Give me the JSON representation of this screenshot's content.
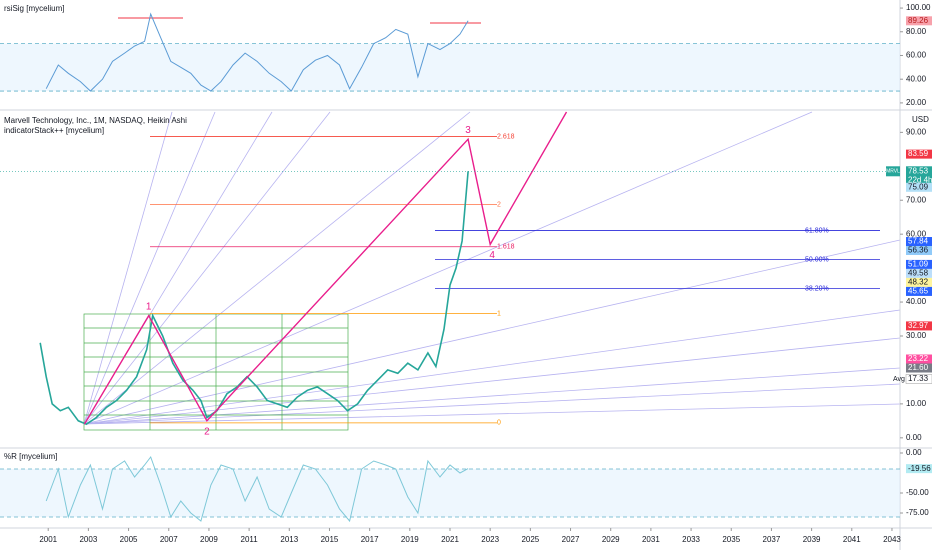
{
  "chart_data": [
    {
      "type": "line",
      "title": "rsiSig [mycelium]",
      "color": "#5b9bd5",
      "x": [
        2000.9,
        2001.5,
        2002.0,
        2002.6,
        2003.1,
        2003.7,
        2004.2,
        2004.8,
        2005.3,
        2005.8,
        2006.1,
        2006.6,
        2007.1,
        2007.6,
        2008.1,
        2008.6,
        2009.1,
        2009.6,
        2010.2,
        2010.8,
        2011.4,
        2012.0,
        2012.6,
        2013.1,
        2013.7,
        2014.3,
        2014.9,
        2015.5,
        2016.0,
        2016.6,
        2017.2,
        2017.8,
        2018.3,
        2018.9,
        2019.4,
        2019.9,
        2020.5,
        2021.0,
        2021.5,
        2021.9
      ],
      "values": [
        32,
        52,
        45,
        38,
        30,
        40,
        55,
        62,
        68,
        72,
        95,
        75,
        55,
        50,
        45,
        35,
        30,
        38,
        52,
        62,
        55,
        45,
        38,
        30,
        48,
        56,
        60,
        52,
        32,
        50,
        70,
        75,
        82,
        78,
        42,
        70,
        65,
        70,
        78,
        89.26
      ],
      "xlim": [
        1998.6,
        2043.4
      ],
      "ylim": [
        15.7,
        106.8
      ],
      "yticks": [
        {
          "value": 20,
          "label": "20.00"
        },
        {
          "value": 40,
          "label": "40.00"
        },
        {
          "value": 60,
          "label": "60.00"
        },
        {
          "value": 80,
          "label": "80.00"
        },
        {
          "value": 100,
          "label": "100.00"
        }
      ],
      "bands": [
        70,
        30
      ]
    },
    {
      "type": "line",
      "title": "Marvell Technology, Inc., 1M, NASDAQ, Heikin Ashi",
      "subtitle": "indicatorStack++ [mycelium]",
      "symbol": "MRVL",
      "countdown": "22d 4h",
      "currency": "USD",
      "avg_label": "Avg",
      "color": "#26a69a",
      "x": [
        2000.6,
        2000.9,
        2001.2,
        2001.6,
        2002.0,
        2002.5,
        2002.9,
        2003.4,
        2003.9,
        2004.4,
        2004.9,
        2005.4,
        2005.9,
        2006.2,
        2006.7,
        2007.2,
        2007.7,
        2008.2,
        2008.6,
        2008.9,
        2009.4,
        2009.9,
        2010.4,
        2010.9,
        2011.4,
        2011.9,
        2012.4,
        2012.9,
        2013.4,
        2013.9,
        2014.4,
        2014.9,
        2015.4,
        2015.9,
        2016.4,
        2016.9,
        2017.4,
        2017.9,
        2018.4,
        2018.9,
        2019.4,
        2019.9,
        2020.3,
        2020.7,
        2021.0,
        2021.3,
        2021.6,
        2021.9
      ],
      "values": [
        28,
        18,
        10,
        8,
        9,
        5,
        4,
        6,
        9,
        11,
        14,
        18,
        26,
        36,
        30,
        22,
        17,
        14,
        11,
        6,
        8,
        13,
        15,
        18,
        15,
        11,
        10,
        9,
        12,
        14,
        15,
        13,
        11,
        8,
        10,
        14,
        17,
        20,
        19,
        22,
        20,
        25,
        21,
        32,
        45,
        50,
        58,
        78.53
      ],
      "xlim": [
        1998.6,
        2043.4
      ],
      "ylim": [
        -3,
        96
      ],
      "yticks": [
        {
          "value": 0,
          "label": "0.00"
        },
        {
          "value": 10,
          "label": "10.00"
        },
        {
          "value": 30,
          "label": "30.00"
        },
        {
          "value": 40,
          "label": "40.00"
        },
        {
          "value": 60,
          "label": "60.00"
        },
        {
          "value": 70,
          "label": "70.00"
        },
        {
          "value": 90,
          "label": "90.00"
        }
      ],
      "price_labels": [
        83.59,
        75.09,
        57.84,
        56.36,
        51.09,
        49.58,
        48.32,
        45.65,
        32.97,
        23.22,
        {
          "value": 21.6,
          "label": "21.60"
        },
        17.33
      ],
      "price_label_colors": [
        "#f23645",
        "#b3e0f7",
        "#2962ff",
        "#90caf9",
        "#2962ff",
        "#bbdefb",
        "#fff59d",
        "#2962ff",
        "#f23645",
        "#ff4fa0",
        "#787b86",
        "#ffffff"
      ],
      "fib_ratios": [
        2.618,
        2,
        1.618,
        1,
        0
      ],
      "fib_levels": [
        88.8,
        68.7,
        56.3,
        36.6,
        4.4
      ],
      "fib_colors": [
        "#f44336",
        "#ff7043",
        "#e91e63",
        "#ff9800",
        "#ff9800"
      ],
      "retracement_labels": [
        "61.80%",
        "50.00%",
        "38.20%"
      ],
      "retracement_levels": [
        61.1,
        52.5,
        44.0
      ],
      "retracement_color": "#2a2ad9",
      "wave_x": [
        2002.8,
        2006.0,
        2008.9,
        2021.9,
        2023.0,
        2026.8
      ],
      "wave_values": [
        4,
        36,
        5,
        88,
        57,
        96
      ],
      "wave_labels": [
        "1",
        "2",
        "3",
        "4"
      ],
      "wave_color": "#e91e8c"
    },
    {
      "type": "line",
      "title": "%R [mycelium]",
      "color": "#7ec8d8",
      "x": [
        2000.9,
        2001.5,
        2002.0,
        2002.6,
        2003.1,
        2003.7,
        2004.2,
        2004.8,
        2005.3,
        2005.8,
        2006.1,
        2006.6,
        2007.1,
        2007.6,
        2008.1,
        2008.6,
        2009.1,
        2009.6,
        2010.2,
        2010.8,
        2011.4,
        2012.0,
        2012.6,
        2013.1,
        2013.7,
        2014.3,
        2014.9,
        2015.5,
        2016.0,
        2016.6,
        2017.2,
        2017.8,
        2018.3,
        2018.9,
        2019.4,
        2019.9,
        2020.5,
        2021.0,
        2021.5,
        2021.9
      ],
      "values": [
        -60,
        -20,
        -80,
        -40,
        -15,
        -70,
        -20,
        -10,
        -30,
        -15,
        -5,
        -40,
        -80,
        -60,
        -75,
        -85,
        -40,
        -15,
        -20,
        -60,
        -30,
        -70,
        -80,
        -50,
        -15,
        -20,
        -40,
        -70,
        -85,
        -20,
        -10,
        -15,
        -20,
        -55,
        -75,
        -10,
        -30,
        -15,
        -25,
        -19.56
      ],
      "xlim": [
        1998.6,
        2043.4
      ],
      "ylim": [
        -93.75,
        6.25
      ],
      "yticks": [
        {
          "value": 0,
          "label": "0.00"
        },
        {
          "value": -50,
          "label": "-50.00"
        },
        {
          "value": -75,
          "label": "-75.00"
        }
      ],
      "bands": [
        -20,
        -80
      ],
      "xticks": [
        2001,
        2003,
        2005,
        2007,
        2009,
        2011,
        2013,
        2015,
        2017,
        2019,
        2021,
        2023,
        2025,
        2027,
        2029,
        2031,
        2033,
        2035,
        2037,
        2039,
        2041,
        2043
      ]
    }
  ]
}
